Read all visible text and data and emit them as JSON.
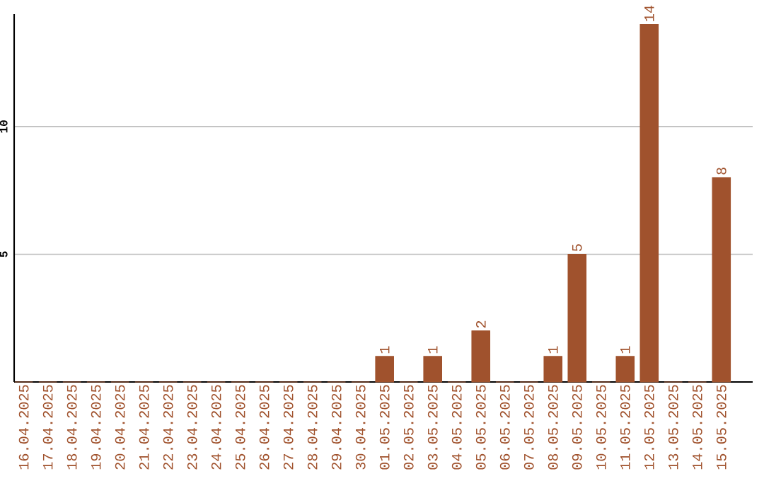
{
  "chart_data": {
    "type": "bar",
    "categories": [
      "16.04.2025",
      "17.04.2025",
      "18.04.2025",
      "19.04.2025",
      "20.04.2025",
      "21.04.2025",
      "22.04.2025",
      "23.04.2025",
      "24.04.2025",
      "25.04.2025",
      "26.04.2025",
      "27.04.2025",
      "28.04.2025",
      "29.04.2025",
      "30.04.2025",
      "01.05.2025",
      "02.05.2025",
      "03.05.2025",
      "04.05.2025",
      "05.05.2025",
      "06.05.2025",
      "07.05.2025",
      "08.05.2025",
      "09.05.2025",
      "10.05.2025",
      "11.05.2025",
      "12.05.2025",
      "13.05.2025",
      "14.05.2025",
      "15.05.2025"
    ],
    "values": [
      0,
      0,
      0,
      0,
      0,
      0,
      0,
      0,
      0,
      0,
      0,
      0,
      0,
      0,
      0,
      1,
      0,
      1,
      0,
      2,
      0,
      0,
      1,
      5,
      0,
      1,
      14,
      0,
      0,
      8
    ],
    "value_labels": [
      null,
      null,
      null,
      null,
      null,
      null,
      null,
      null,
      null,
      null,
      null,
      null,
      null,
      null,
      null,
      "1",
      null,
      "1",
      null,
      "2",
      null,
      null,
      "1",
      "5",
      null,
      "1",
      "14",
      null,
      null,
      "8"
    ],
    "color": "#a0522d",
    "ylim": [
      0,
      14.4
    ],
    "yticks": [
      5,
      10
    ],
    "grid": "y"
  }
}
